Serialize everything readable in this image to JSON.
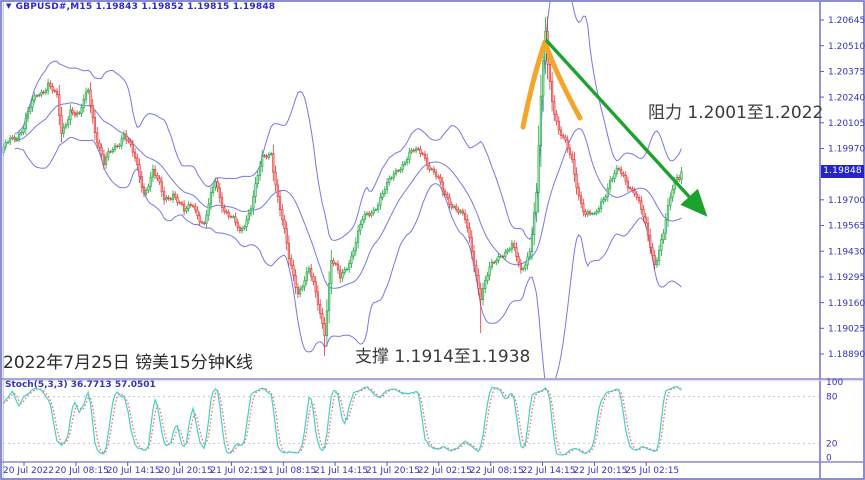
{
  "header": {
    "dropdown_icon": "▼",
    "title": "GBPUSD#,M15  1.19843 1.19852 1.19815 1.19848"
  },
  "price_axis": {
    "ticks": [
      "1.20645",
      "1.20510",
      "1.20375",
      "1.20240",
      "1.20105",
      "1.19970",
      "1.19848",
      "1.19700",
      "1.19565",
      "1.19430",
      "1.19295",
      "1.19160",
      "1.19025",
      "1.18890"
    ],
    "badge_value": "1.19848"
  },
  "time_axis": {
    "labels": [
      "20 Jul 2022",
      "20 Jul 08:15",
      "20 Jul 14:15",
      "20 Jul 20:15",
      "21 Jul 02:15",
      "21 Jul 08:15",
      "21 Jul 14:15",
      "21 Jul 20:15",
      "22 Jul 02:15",
      "22 Jul 08:15",
      "22 Jul 14:15",
      "22 Jul 20:15",
      "25 Jul 02:15"
    ]
  },
  "stoch_panel": {
    "label": "Stoch(5,3,3) 36.7713 57.0501",
    "level_labels": [
      "100",
      "80",
      "20",
      "0"
    ]
  },
  "annotations": {
    "resistance": "阻力 1.2001至1.2022",
    "support": "支撑 1.1914至1.1938",
    "date_note": "2022年7月25日 镑美15分钟K线"
  },
  "chart_data": {
    "type": "candlestick",
    "symbol": "GBPUSD#",
    "timeframe": "M15",
    "last_quote": {
      "open": 1.19843,
      "high": 1.19852,
      "low": 1.19815,
      "close": 1.19848
    },
    "current_price": 1.19848,
    "y_axis": {
      "min": 1.1889,
      "max": 1.20645,
      "tick_step": 0.00135
    },
    "x_axis": {
      "labels": [
        "20 Jul 2022",
        "20 Jul 08:15",
        "20 Jul 14:15",
        "20 Jul 20:15",
        "21 Jul 02:15",
        "21 Jul 08:15",
        "21 Jul 14:15",
        "21 Jul 20:15",
        "22 Jul 02:15",
        "22 Jul 08:15",
        "22 Jul 14:15",
        "22 Jul 20:15",
        "25 Jul 02:15"
      ]
    },
    "resistance_zone": [
      1.2001,
      1.2022
    ],
    "support_zone": [
      1.1914,
      1.1938
    ],
    "indicators": {
      "bollinger": {
        "period": 20,
        "deviation": 2
      },
      "stochastic": {
        "params": "5,3,3",
        "k_value": 36.7713,
        "d_value": 57.0501,
        "levels": [
          80,
          20
        ],
        "range": [
          0,
          100
        ]
      }
    },
    "colors": {
      "bull": "#1ea342",
      "bull_fill": "#a8e8b4",
      "bear": "#e03535",
      "bear_fill": "#f4aca4",
      "bands": "#7678ea",
      "axis_text": "#3434bb",
      "frame": "#7070c8",
      "badge_bg": "#2424c8",
      "stoch_k": "#45d1c5",
      "stoch_d": "#ef6a6a",
      "level_dotted": "#c9c9c9",
      "arrow_green": "#1da32d",
      "mark_orange": "#f4a62a"
    },
    "price_path": [
      [
        0,
        1.1995
      ],
      [
        3,
        1.2001
      ],
      [
        9,
        1.2009
      ],
      [
        15,
        1.2025
      ],
      [
        20,
        1.2032
      ],
      [
        24,
        1.2022
      ],
      [
        26,
        1.2004
      ],
      [
        30,
        1.2019
      ],
      [
        34,
        1.2013
      ],
      [
        38,
        1.2028
      ],
      [
        41,
        1.2008
      ],
      [
        45,
        1.1988
      ],
      [
        49,
        1.1996
      ],
      [
        54,
        1.2006
      ],
      [
        59,
        1.199
      ],
      [
        63,
        1.1975
      ],
      [
        67,
        1.1985
      ],
      [
        72,
        1.197
      ],
      [
        76,
        1.1975
      ],
      [
        81,
        1.1962
      ],
      [
        85,
        1.1969
      ],
      [
        90,
        1.1956
      ],
      [
        95,
        1.198
      ],
      [
        99,
        1.1966
      ],
      [
        106,
        1.1952
      ],
      [
        111,
        1.1968
      ],
      [
        116,
        1.199
      ],
      [
        120,
        1.1996
      ],
      [
        123,
        1.1972
      ],
      [
        128,
        1.1938
      ],
      [
        132,
        1.1923
      ],
      [
        137,
        1.1932
      ],
      [
        141,
        1.1916
      ],
      [
        144,
        1.1902
      ],
      [
        147,
        1.1938
      ],
      [
        151,
        1.1928
      ],
      [
        156,
        1.1942
      ],
      [
        161,
        1.1958
      ],
      [
        167,
        1.1968
      ],
      [
        172,
        1.1976
      ],
      [
        177,
        1.1988
      ],
      [
        182,
        1.1993
      ],
      [
        188,
        1.1996
      ],
      [
        192,
        1.1986
      ],
      [
        197,
        1.1974
      ],
      [
        202,
        1.1968
      ],
      [
        207,
        1.1958
      ],
      [
        210,
        1.1944
      ],
      [
        214,
        1.192
      ],
      [
        218,
        1.1932
      ],
      [
        223,
        1.1943
      ],
      [
        228,
        1.1945
      ],
      [
        232,
        1.1932
      ],
      [
        236,
        1.1945
      ],
      [
        239,
        1.1972
      ],
      [
        241,
        1.2022
      ],
      [
        243,
        1.2058
      ],
      [
        244,
        1.2042
      ],
      [
        246,
        1.2024
      ],
      [
        249,
        1.2007
      ],
      [
        252,
        1.1998
      ],
      [
        255,
        1.199
      ],
      [
        258,
        1.1974
      ],
      [
        261,
        1.1962
      ],
      [
        265,
        1.196
      ],
      [
        268,
        1.197
      ],
      [
        272,
        1.198
      ],
      [
        276,
        1.1984
      ],
      [
        279,
        1.1981
      ],
      [
        283,
        1.1975
      ],
      [
        288,
        1.1955
      ],
      [
        292,
        1.1938
      ],
      [
        296,
        1.1952
      ],
      [
        300,
        1.1975
      ],
      [
        302,
        1.1983
      ],
      [
        304,
        1.19848
      ]
    ],
    "wick_overrides": [
      {
        "i": 144,
        "low": 1.1888
      },
      {
        "i": 214,
        "low": 1.19
      },
      {
        "i": 243,
        "high": 1.2066
      }
    ],
    "drawings": {
      "trend_arrow": {
        "from": [
          546,
          40
        ],
        "to": [
          704,
          213
        ]
      },
      "orange_mark": {
        "points": [
          [
            523,
            127
          ],
          [
            545,
            42
          ],
          [
            580,
            118
          ]
        ]
      }
    }
  }
}
